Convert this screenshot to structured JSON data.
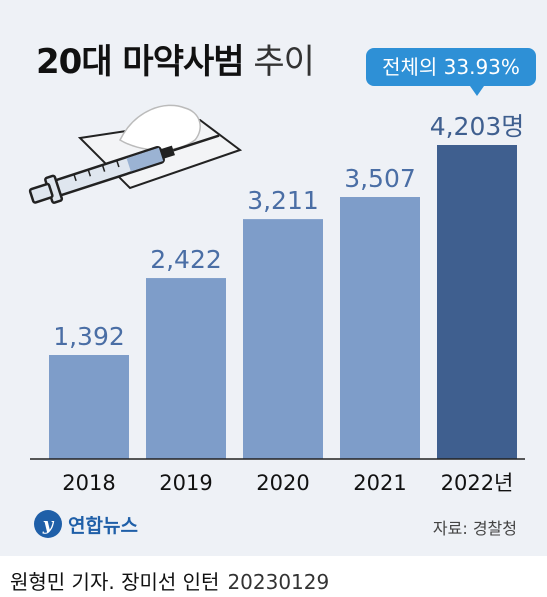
{
  "title": {
    "bold": "20대 마약사범",
    "light": "추이"
  },
  "callout": "전체의 33.93%",
  "chart_data": {
    "type": "bar",
    "categories": [
      "2018",
      "2019",
      "2020",
      "2021",
      "2022년"
    ],
    "values": [
      1392,
      2422,
      3211,
      3507,
      4203
    ],
    "value_labels": [
      "1,392",
      "2,422",
      "3,211",
      "3,507",
      "4,203명"
    ],
    "highlight_index": 4,
    "colors": {
      "bar": "#7e9dc9",
      "highlight": "#3f5f8f"
    },
    "ylim": [
      0,
      4203
    ],
    "grid": false
  },
  "footer": {
    "logo_text": "연합뉴스",
    "source": "자료: 경찰청",
    "credit": "원형민 기자. 장미선 인턴",
    "date": "20230129"
  }
}
